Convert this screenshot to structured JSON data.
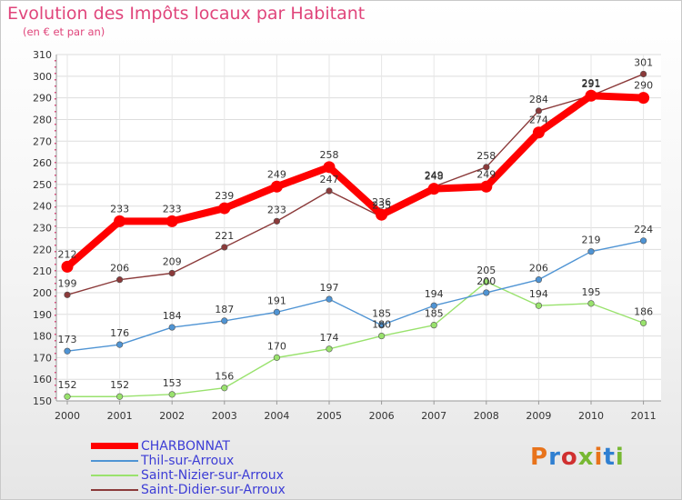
{
  "header": {
    "title": "Evolution des Impôts locaux par Habitant",
    "subtitle": "(en € et par an)"
  },
  "brand": {
    "text": "Proxiti"
  },
  "colors": {
    "charbonnat": "#ff0000",
    "thil": "#4f94d4",
    "saint_nizier": "#99e26d",
    "saint_didier": "#8b3a3a",
    "title": "#e0457b",
    "legend_text": "#3d3dd6"
  },
  "chart_data": {
    "type": "line",
    "title": "Evolution des Impôts locaux par Habitant",
    "subtitle": "(en € et par an)",
    "xlabel": "",
    "ylabel": "",
    "ylim": [
      150,
      310
    ],
    "yticks": [
      150,
      160,
      170,
      180,
      190,
      200,
      210,
      220,
      230,
      240,
      250,
      260,
      270,
      280,
      290,
      300,
      310
    ],
    "grid": true,
    "legend_position": "bottom-left",
    "x": [
      "2000",
      "2001",
      "2002",
      "2003",
      "2004",
      "2005",
      "2006",
      "2007",
      "2008",
      "2009",
      "2010",
      "2011"
    ],
    "series": [
      {
        "name": "CHARBONNAT",
        "key": "charbonnat",
        "values": [
          212,
          233,
          233,
          239,
          249,
          258,
          236,
          248,
          249,
          274,
          291,
          290
        ],
        "bold": true
      },
      {
        "name": "Thil-sur-Arroux",
        "key": "thil",
        "values": [
          173,
          176,
          184,
          187,
          191,
          197,
          185,
          194,
          200,
          206,
          219,
          224
        ]
      },
      {
        "name": "Saint-Nizier-sur-Arroux",
        "key": "saint_nizier",
        "values": [
          152,
          152,
          153,
          156,
          170,
          174,
          180,
          185,
          205,
          194,
          195,
          186
        ]
      },
      {
        "name": "Saint-Didier-sur-Arroux",
        "key": "saint_didier",
        "values": [
          199,
          206,
          209,
          221,
          233,
          247,
          235,
          249,
          258,
          284,
          291,
          301
        ]
      }
    ]
  }
}
